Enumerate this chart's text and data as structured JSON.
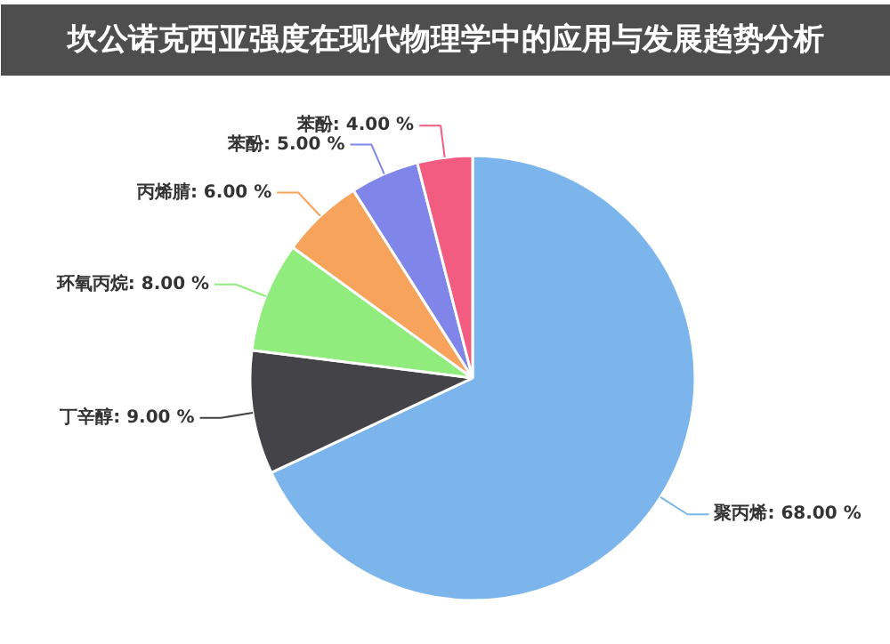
{
  "chart_data": {
    "type": "pie",
    "title": "坎公诺克西亚强度在现代物理学中的应用与发展趋势分析",
    "categories": [
      "聚丙烯",
      "丁辛醇",
      "环氧丙烷",
      "丙烯腈",
      "苯酚",
      "苯酚"
    ],
    "values": [
      68,
      9,
      8,
      6,
      5,
      4
    ],
    "value_labels": [
      "68.00 %",
      "9.00 %",
      "8.00 %",
      "6.00 %",
      "5.00 %",
      "4.00 %"
    ],
    "colors": [
      "#7cb5ec",
      "#434348",
      "#90ed7d",
      "#f7a35c",
      "#8085e9",
      "#f15c80"
    ]
  }
}
